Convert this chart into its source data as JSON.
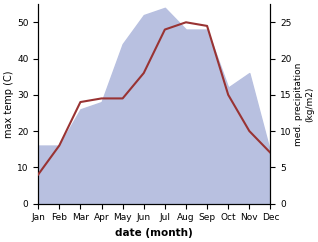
{
  "months": [
    "Jan",
    "Feb",
    "Mar",
    "Apr",
    "May",
    "Jun",
    "Jul",
    "Aug",
    "Sep",
    "Oct",
    "Nov",
    "Dec"
  ],
  "temperature": [
    8,
    16,
    28,
    29,
    29,
    36,
    48,
    50,
    49,
    30,
    20,
    14
  ],
  "precipitation": [
    8,
    8,
    13,
    14,
    22,
    26,
    27,
    24,
    24,
    16,
    18,
    7
  ],
  "temp_color": "#993333",
  "precip_fill_color": "#b8c0e0",
  "ylabel_left": "max temp (C)",
  "ylabel_right": "med. precipitation\n(kg/m2)",
  "xlabel": "date (month)",
  "ylim_left": [
    0,
    55
  ],
  "ylim_right": [
    0,
    27.5
  ],
  "yticks_left": [
    0,
    10,
    20,
    30,
    40,
    50
  ],
  "yticks_right": [
    0,
    5,
    10,
    15,
    20,
    25
  ]
}
